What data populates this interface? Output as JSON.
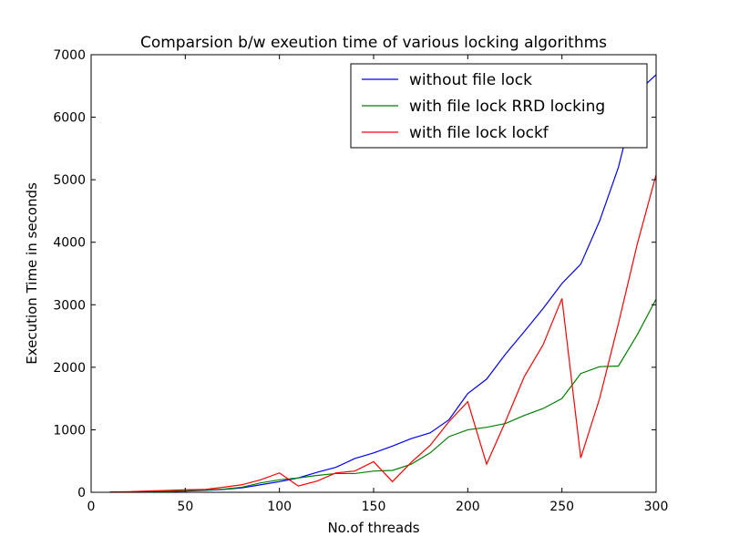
{
  "chart_data": {
    "type": "line",
    "title": "Comparsion b/w exeution time of various locking algorithms",
    "xlabel": "No.of threads",
    "ylabel": "Execution Time in seconds",
    "xlim": [
      0,
      300
    ],
    "ylim": [
      0,
      7000
    ],
    "xticks": [
      0,
      50,
      100,
      150,
      200,
      250,
      300
    ],
    "yticks": [
      0,
      1000,
      2000,
      3000,
      4000,
      5000,
      6000,
      7000
    ],
    "grid": false,
    "legend_position": "top-right",
    "x": [
      10,
      20,
      30,
      40,
      50,
      60,
      70,
      80,
      90,
      100,
      110,
      120,
      130,
      140,
      150,
      160,
      170,
      180,
      190,
      200,
      210,
      220,
      230,
      240,
      250,
      260,
      270,
      280,
      290,
      300
    ],
    "series": [
      {
        "name": "without file lock",
        "color": "#0000ff",
        "values": [
          2,
          5,
          8,
          12,
          20,
          30,
          45,
          70,
          120,
          170,
          230,
          320,
          400,
          540,
          630,
          740,
          860,
          950,
          1160,
          1580,
          1810,
          2210,
          2570,
          2940,
          3340,
          3650,
          4340,
          5200,
          6400,
          6680
        ]
      },
      {
        "name": "with file lock RRD locking",
        "color": "#008000",
        "values": [
          2,
          5,
          10,
          15,
          25,
          35,
          50,
          80,
          150,
          200,
          230,
          270,
          300,
          300,
          340,
          350,
          450,
          630,
          890,
          1000,
          1040,
          1100,
          1230,
          1340,
          1500,
          1900,
          2010,
          2020,
          2520,
          3090
        ]
      },
      {
        "name": "with file lock lockf",
        "color": "#ff0000",
        "values": [
          5,
          10,
          20,
          30,
          40,
          45,
          80,
          120,
          200,
          310,
          100,
          180,
          310,
          340,
          490,
          170,
          480,
          750,
          1130,
          1450,
          450,
          1130,
          1850,
          2360,
          3100,
          550,
          1500,
          2700,
          3970,
          5080
        ]
      }
    ]
  }
}
